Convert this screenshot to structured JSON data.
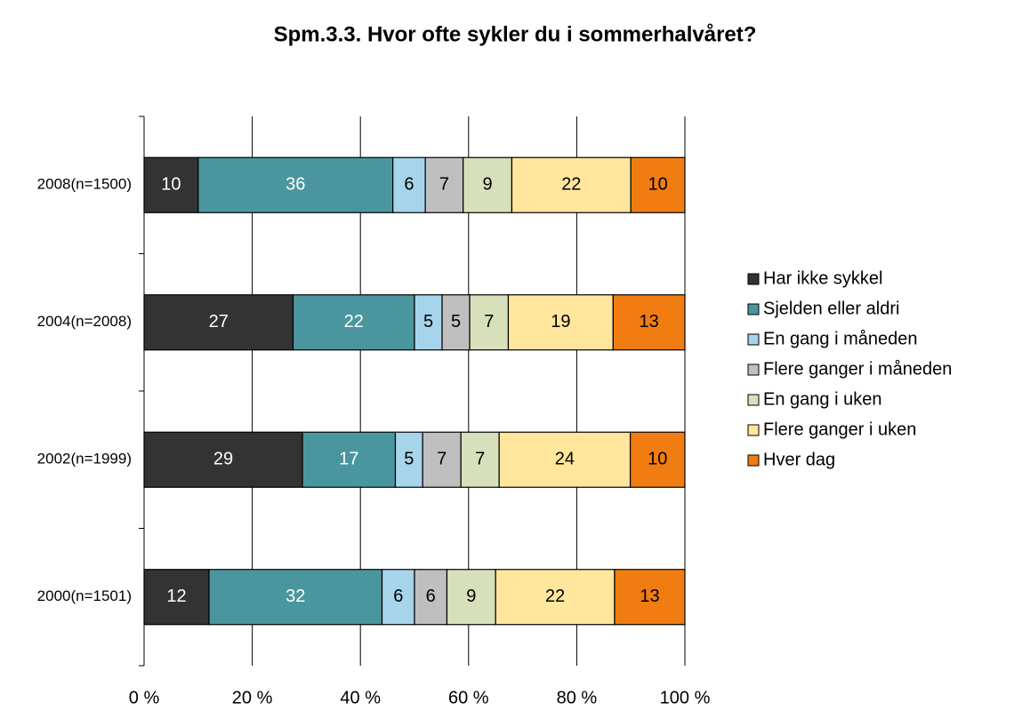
{
  "chart_data": {
    "type": "bar",
    "orientation": "horizontal",
    "stacked": "percent",
    "title": "Spm.3.3. Hvor ofte sykler du i sommerhalvåret?",
    "categories": [
      "2008(n=1500)",
      "2004(n=2008)",
      "2002(n=1999)",
      "2000(n=1501)"
    ],
    "series": [
      {
        "name": "Har ikke sykkel",
        "color": "#333333",
        "label_color": "#ffffff",
        "values": [
          10,
          27,
          29,
          12
        ]
      },
      {
        "name": "Sjelden eller aldri",
        "color": "#4a969e",
        "label_color": "#ffffff",
        "values": [
          36,
          22,
          17,
          32
        ]
      },
      {
        "name": "En gang i måneden",
        "color": "#a6d4ea",
        "label_color": "#000000",
        "values": [
          6,
          5,
          5,
          6
        ]
      },
      {
        "name": "Flere ganger i måneden",
        "color": "#bfbfbf",
        "label_color": "#000000",
        "values": [
          7,
          5,
          7,
          6
        ]
      },
      {
        "name": "En gang i uken",
        "color": "#d7e0bb",
        "label_color": "#000000",
        "values": [
          9,
          7,
          7,
          9
        ]
      },
      {
        "name": "Flere ganger i uken",
        "color": "#ffe69c",
        "label_color": "#000000",
        "values": [
          22,
          19,
          24,
          22
        ]
      },
      {
        "name": "Hver dag",
        "color": "#f07c12",
        "label_color": "#000000",
        "values": [
          10,
          13,
          10,
          13
        ]
      }
    ],
    "xlim": [
      0,
      100
    ],
    "xticks": [
      {
        "value": 0,
        "label": "0 %"
      },
      {
        "value": 20,
        "label": "20 %"
      },
      {
        "value": 40,
        "label": "40 %"
      },
      {
        "value": 60,
        "label": "60 %"
      },
      {
        "value": 80,
        "label": "80 %"
      },
      {
        "value": 100,
        "label": "100 %"
      }
    ],
    "grid": true,
    "legend": "right"
  }
}
